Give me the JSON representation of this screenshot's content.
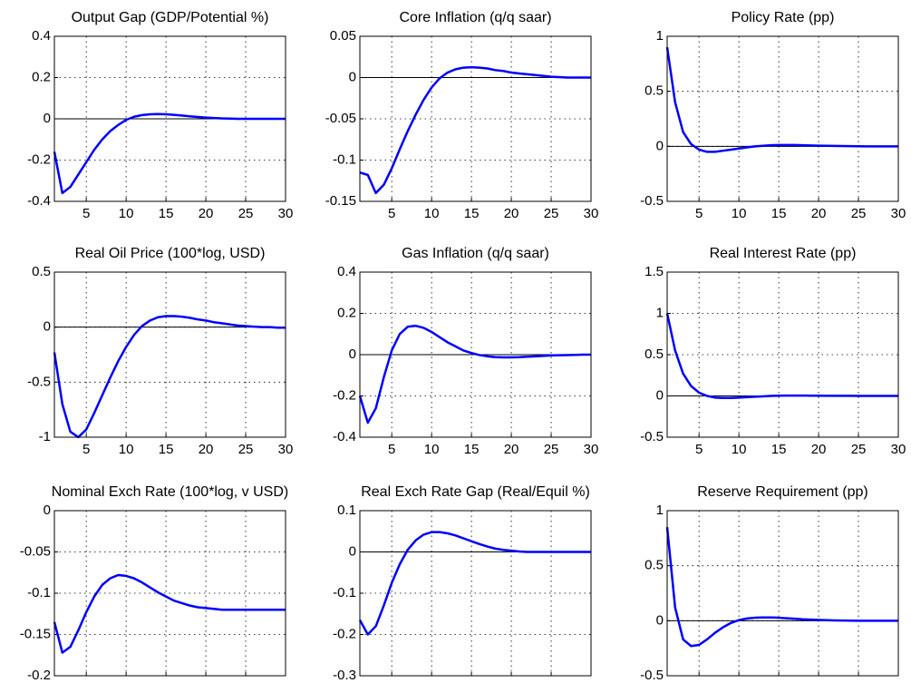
{
  "chart_data": [
    {
      "type": "line",
      "title": "Output Gap (GDP/Potential %)",
      "x": [
        1,
        2,
        3,
        4,
        5,
        6,
        7,
        8,
        9,
        10,
        11,
        12,
        13,
        14,
        15,
        16,
        17,
        18,
        19,
        20,
        21,
        22,
        23,
        24,
        25,
        26,
        27,
        28,
        29,
        30
      ],
      "values": [
        -0.16,
        -0.36,
        -0.33,
        -0.27,
        -0.21,
        -0.15,
        -0.1,
        -0.06,
        -0.03,
        -0.005,
        0.01,
        0.018,
        0.022,
        0.023,
        0.022,
        0.019,
        0.016,
        0.012,
        0.009,
        0.006,
        0.004,
        0.002,
        0.001,
        0,
        0,
        0,
        0,
        0,
        0,
        0
      ],
      "color": "#0000ff",
      "xlim": [
        1,
        30
      ],
      "xticks": [
        5,
        10,
        15,
        20,
        25,
        30
      ],
      "ylim": [
        -0.4,
        0.4
      ],
      "yticks": [
        -0.4,
        -0.2,
        0,
        0.2,
        0.4
      ],
      "grid": true
    },
    {
      "type": "line",
      "title": "Core Inflation (q/q saar)",
      "x": [
        1,
        2,
        3,
        4,
        5,
        6,
        7,
        8,
        9,
        10,
        11,
        12,
        13,
        14,
        15,
        16,
        17,
        18,
        19,
        20,
        21,
        22,
        23,
        24,
        25,
        26,
        27,
        28,
        29,
        30
      ],
      "values": [
        -0.115,
        -0.118,
        -0.14,
        -0.13,
        -0.11,
        -0.087,
        -0.065,
        -0.045,
        -0.027,
        -0.012,
        -0.001,
        0.006,
        0.01,
        0.012,
        0.0125,
        0.012,
        0.011,
        0.009,
        0.008,
        0.006,
        0.005,
        0.004,
        0.003,
        0.002,
        0.001,
        0.0005,
        0,
        0,
        0,
        0
      ],
      "color": "#0000ff",
      "xlim": [
        1,
        30
      ],
      "xticks": [
        5,
        10,
        15,
        20,
        25,
        30
      ],
      "ylim": [
        -0.15,
        0.05
      ],
      "yticks": [
        -0.15,
        -0.1,
        -0.05,
        0,
        0.05
      ],
      "grid": true
    },
    {
      "type": "line",
      "title": "Policy Rate (pp)",
      "x": [
        1,
        2,
        3,
        4,
        5,
        6,
        7,
        8,
        9,
        10,
        11,
        12,
        13,
        14,
        15,
        16,
        17,
        18,
        19,
        20,
        21,
        22,
        23,
        24,
        25,
        26,
        27,
        28,
        29,
        30
      ],
      "values": [
        0.9,
        0.4,
        0.13,
        0.02,
        -0.03,
        -0.05,
        -0.05,
        -0.04,
        -0.03,
        -0.02,
        -0.01,
        0,
        0.005,
        0.01,
        0.012,
        0.012,
        0.012,
        0.01,
        0.008,
        0.006,
        0.005,
        0.004,
        0.003,
        0.002,
        0.001,
        0,
        0,
        0,
        0,
        0
      ],
      "color": "#0000ff",
      "xlim": [
        1,
        30
      ],
      "xticks": [
        5,
        10,
        15,
        20,
        25,
        30
      ],
      "ylim": [
        -0.5,
        1
      ],
      "yticks": [
        -0.5,
        0,
        0.5,
        1
      ],
      "grid": true
    },
    {
      "type": "line",
      "title": "Real Oil Price (100*log, USD)",
      "x": [
        1,
        2,
        3,
        4,
        5,
        6,
        7,
        8,
        9,
        10,
        11,
        12,
        13,
        14,
        15,
        16,
        17,
        18,
        19,
        20,
        21,
        22,
        23,
        24,
        25,
        26,
        27,
        28,
        29,
        30
      ],
      "values": [
        -0.23,
        -0.7,
        -0.95,
        -1.0,
        -0.93,
        -0.78,
        -0.62,
        -0.46,
        -0.31,
        -0.18,
        -0.07,
        0.01,
        0.06,
        0.09,
        0.1,
        0.1,
        0.095,
        0.085,
        0.07,
        0.06,
        0.045,
        0.035,
        0.025,
        0.015,
        0.01,
        0.005,
        0,
        0,
        -0.005,
        -0.005
      ],
      "color": "#0000ff",
      "xlim": [
        1,
        30
      ],
      "xticks": [
        5,
        10,
        15,
        20,
        25,
        30
      ],
      "ylim": [
        -1,
        0.5
      ],
      "yticks": [
        -1,
        -0.5,
        0,
        0.5
      ],
      "grid": true
    },
    {
      "type": "line",
      "title": "Gas Inflation (q/q saar)",
      "x": [
        1,
        2,
        3,
        4,
        5,
        6,
        7,
        8,
        9,
        10,
        11,
        12,
        13,
        14,
        15,
        16,
        17,
        18,
        19,
        20,
        21,
        22,
        23,
        24,
        25,
        26,
        27,
        28,
        29,
        30
      ],
      "values": [
        -0.2,
        -0.33,
        -0.26,
        -0.11,
        0.02,
        0.1,
        0.135,
        0.14,
        0.13,
        0.11,
        0.085,
        0.06,
        0.04,
        0.02,
        0.008,
        -0.002,
        -0.008,
        -0.012,
        -0.013,
        -0.013,
        -0.012,
        -0.01,
        -0.008,
        -0.006,
        -0.004,
        -0.003,
        -0.002,
        -0.001,
        0,
        0
      ],
      "color": "#0000ff",
      "xlim": [
        1,
        30
      ],
      "xticks": [
        5,
        10,
        15,
        20,
        25,
        30
      ],
      "ylim": [
        -0.4,
        0.4
      ],
      "yticks": [
        -0.4,
        -0.2,
        0,
        0.2,
        0.4
      ],
      "grid": true
    },
    {
      "type": "line",
      "title": "Real Interest Rate (pp)",
      "x": [
        1,
        2,
        3,
        4,
        5,
        6,
        7,
        8,
        9,
        10,
        11,
        12,
        13,
        14,
        15,
        16,
        17,
        18,
        19,
        20,
        21,
        22,
        23,
        24,
        25,
        26,
        27,
        28,
        29,
        30
      ],
      "values": [
        1.0,
        0.55,
        0.27,
        0.12,
        0.04,
        0,
        -0.02,
        -0.025,
        -0.025,
        -0.02,
        -0.015,
        -0.01,
        -0.005,
        0,
        0.003,
        0.004,
        0.004,
        0.004,
        0.003,
        0.003,
        0.002,
        0.002,
        0.001,
        0.001,
        0,
        0,
        0,
        0,
        0,
        0
      ],
      "color": "#0000ff",
      "xlim": [
        1,
        30
      ],
      "xticks": [
        5,
        10,
        15,
        20,
        25,
        30
      ],
      "ylim": [
        -0.5,
        1.5
      ],
      "yticks": [
        -0.5,
        0,
        0.5,
        1,
        1.5
      ],
      "grid": true
    },
    {
      "type": "line",
      "title": "Nominal Exch Rate (100*log, v USD)",
      "x": [
        1,
        2,
        3,
        4,
        5,
        6,
        7,
        8,
        9,
        10,
        11,
        12,
        13,
        14,
        15,
        16,
        17,
        18,
        19,
        20,
        21,
        22,
        23,
        24,
        25,
        26,
        27,
        28,
        29,
        30
      ],
      "values": [
        -0.135,
        -0.172,
        -0.165,
        -0.145,
        -0.123,
        -0.104,
        -0.09,
        -0.082,
        -0.078,
        -0.079,
        -0.082,
        -0.087,
        -0.093,
        -0.099,
        -0.104,
        -0.109,
        -0.112,
        -0.115,
        -0.117,
        -0.118,
        -0.119,
        -0.12,
        -0.12,
        -0.12,
        -0.12,
        -0.12,
        -0.12,
        -0.12,
        -0.12,
        -0.12
      ],
      "color": "#0000ff",
      "xlim": [
        1,
        30
      ],
      "xticks": [
        5,
        10,
        15,
        20,
        25,
        30
      ],
      "ylim": [
        -0.2,
        0
      ],
      "yticks": [
        -0.2,
        -0.15,
        -0.1,
        -0.05,
        0
      ],
      "grid": true
    },
    {
      "type": "line",
      "title": "Real Exch Rate Gap (Real/Equil %)",
      "x": [
        1,
        2,
        3,
        4,
        5,
        6,
        7,
        8,
        9,
        10,
        11,
        12,
        13,
        14,
        15,
        16,
        17,
        18,
        19,
        20,
        21,
        22,
        23,
        24,
        25,
        26,
        27,
        28,
        29,
        30
      ],
      "values": [
        -0.165,
        -0.2,
        -0.18,
        -0.13,
        -0.075,
        -0.03,
        0.005,
        0.028,
        0.042,
        0.048,
        0.048,
        0.045,
        0.04,
        0.033,
        0.026,
        0.019,
        0.013,
        0.008,
        0.005,
        0.003,
        0.001,
        0,
        0,
        0,
        0,
        0,
        0,
        0,
        0,
        0
      ],
      "color": "#0000ff",
      "xlim": [
        1,
        30
      ],
      "xticks": [
        5,
        10,
        15,
        20,
        25,
        30
      ],
      "ylim": [
        -0.3,
        0.1
      ],
      "yticks": [
        -0.3,
        -0.2,
        -0.1,
        0,
        0.1
      ],
      "grid": true
    },
    {
      "type": "line",
      "title": "Reserve Requirement (pp)",
      "x": [
        1,
        2,
        3,
        4,
        5,
        6,
        7,
        8,
        9,
        10,
        11,
        12,
        13,
        14,
        15,
        16,
        17,
        18,
        19,
        20,
        21,
        22,
        23,
        24,
        25,
        26,
        27,
        28,
        29,
        30
      ],
      "values": [
        0.85,
        0.12,
        -0.17,
        -0.23,
        -0.22,
        -0.17,
        -0.11,
        -0.06,
        -0.02,
        0.005,
        0.02,
        0.027,
        0.03,
        0.03,
        0.027,
        0.022,
        0.018,
        0.013,
        0.01,
        0.007,
        0.005,
        0.003,
        0.002,
        0.001,
        0,
        0,
        0,
        0,
        0,
        0
      ],
      "color": "#0000ff",
      "xlim": [
        1,
        30
      ],
      "xticks": [
        5,
        10,
        15,
        20,
        25,
        30
      ],
      "ylim": [
        -0.5,
        1
      ],
      "yticks": [
        -0.5,
        0,
        0.5,
        1
      ],
      "grid": true
    }
  ]
}
